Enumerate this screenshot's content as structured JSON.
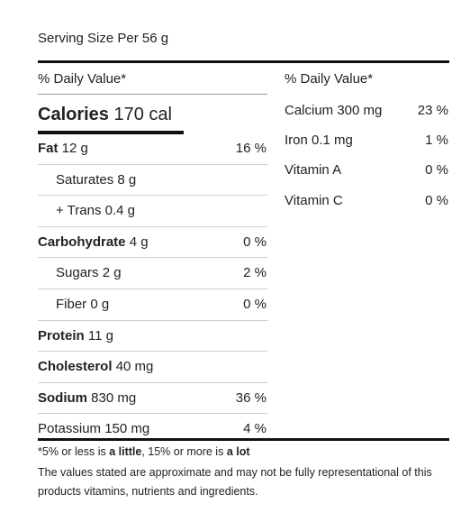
{
  "serving_size": "Serving Size Per 56 g",
  "daily_value_header": "% Daily Value*",
  "calories": {
    "label": "Calories",
    "value": "170 cal"
  },
  "left_rows": [
    {
      "label": "Fat",
      "amount": "12 g",
      "pct": "16 %",
      "bold": true,
      "indent": false
    },
    {
      "label": "Saturates",
      "amount": "8 g",
      "pct": "",
      "bold": false,
      "indent": true
    },
    {
      "label": "+ Trans",
      "amount": "0.4 g",
      "pct": "",
      "bold": false,
      "indent": true
    },
    {
      "label": "Carbohydrate",
      "amount": "4 g",
      "pct": "0 %",
      "bold": true,
      "indent": false
    },
    {
      "label": "Sugars",
      "amount": "2 g",
      "pct": "2 %",
      "bold": false,
      "indent": true
    },
    {
      "label": "Fiber",
      "amount": "0 g",
      "pct": "0 %",
      "bold": false,
      "indent": true
    },
    {
      "label": "Protein",
      "amount": "11 g",
      "pct": "",
      "bold": true,
      "indent": false
    },
    {
      "label": "Cholesterol",
      "amount": "40 mg",
      "pct": "",
      "bold": true,
      "indent": false
    },
    {
      "label": "Sodium",
      "amount": "830 mg",
      "pct": "36 %",
      "bold": true,
      "indent": false
    },
    {
      "label": "Potassium",
      "amount": "150 mg",
      "pct": "4 %",
      "bold": false,
      "indent": false
    }
  ],
  "right_rows": [
    {
      "label": "Calcium 300 mg",
      "pct": "23 %"
    },
    {
      "label": "Iron 0.1 mg",
      "pct": "1 %"
    },
    {
      "label": "Vitamin A",
      "pct": "0 %"
    },
    {
      "label": "Vitamin C",
      "pct": "0 %"
    }
  ],
  "footnote": {
    "prefix": "*5% or less is ",
    "little": "a little",
    "middle": ", 15% or more is ",
    "lot": "a lot"
  },
  "disclaimer": "The values stated are approximate and may not be fully representational of this products vitamins, nutrients and ingredients."
}
